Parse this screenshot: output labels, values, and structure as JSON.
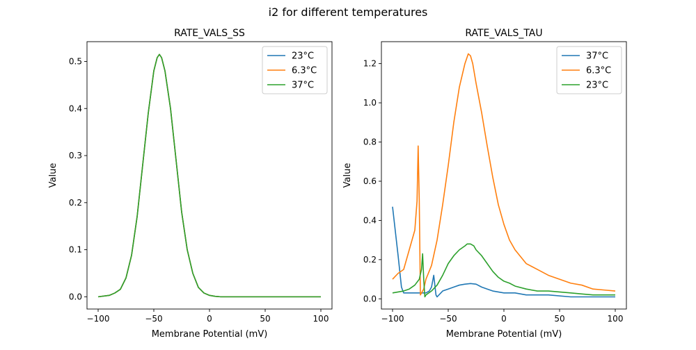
{
  "figure": {
    "suptitle": "i2 for different temperatures"
  },
  "colors": {
    "blue": "#1f77b4",
    "orange": "#ff7f0e",
    "green": "#2ca02c"
  },
  "chart_data": [
    {
      "type": "line",
      "title": "RATE_VALS_SS",
      "xlabel": "Membrane Potential (mV)",
      "ylabel": "Value",
      "xlim": [
        -110,
        110
      ],
      "ylim": [
        -0.026,
        0.542
      ],
      "xticks": [
        -100,
        -50,
        0,
        50,
        100
      ],
      "xtick_labels": [
        "−100",
        "−50",
        "0",
        "50",
        "100"
      ],
      "yticks": [
        0.0,
        0.1,
        0.2,
        0.3,
        0.4,
        0.5
      ],
      "ytick_labels": [
        "0.0",
        "0.1",
        "0.2",
        "0.3",
        "0.4",
        "0.5"
      ],
      "grid": false,
      "legend_position": "upper right",
      "series": [
        {
          "name": "23°C",
          "color": "#1f77b4",
          "x": [
            -100,
            -90,
            -85,
            -80,
            -75,
            -70,
            -65,
            -60,
            -55,
            -50,
            -47,
            -45,
            -43,
            -40,
            -35,
            -30,
            -25,
            -20,
            -15,
            -10,
            -5,
            0,
            5,
            10,
            20,
            40,
            60,
            80,
            100
          ],
          "y": [
            0.0,
            0.003,
            0.008,
            0.016,
            0.04,
            0.088,
            0.17,
            0.28,
            0.39,
            0.48,
            0.508,
            0.515,
            0.508,
            0.48,
            0.4,
            0.29,
            0.18,
            0.1,
            0.05,
            0.02,
            0.008,
            0.003,
            0.001,
            0.0,
            0.0,
            0.0,
            0.0,
            0.0,
            0.0
          ]
        },
        {
          "name": "6.3°C",
          "color": "#ff7f0e",
          "x": [
            -100,
            -90,
            -85,
            -80,
            -75,
            -70,
            -65,
            -60,
            -55,
            -50,
            -47,
            -45,
            -43,
            -40,
            -35,
            -30,
            -25,
            -20,
            -15,
            -10,
            -5,
            0,
            5,
            10,
            20,
            40,
            60,
            80,
            100
          ],
          "y": [
            0.0,
            0.003,
            0.008,
            0.016,
            0.04,
            0.088,
            0.17,
            0.28,
            0.39,
            0.48,
            0.508,
            0.515,
            0.508,
            0.48,
            0.4,
            0.29,
            0.18,
            0.1,
            0.05,
            0.02,
            0.008,
            0.003,
            0.001,
            0.0,
            0.0,
            0.0,
            0.0,
            0.0,
            0.0
          ]
        },
        {
          "name": "37°C",
          "color": "#2ca02c",
          "x": [
            -100,
            -90,
            -85,
            -80,
            -75,
            -70,
            -65,
            -60,
            -55,
            -50,
            -47,
            -45,
            -43,
            -40,
            -35,
            -30,
            -25,
            -20,
            -15,
            -10,
            -5,
            0,
            5,
            10,
            20,
            40,
            60,
            80,
            100
          ],
          "y": [
            0.0,
            0.003,
            0.008,
            0.016,
            0.04,
            0.088,
            0.17,
            0.28,
            0.39,
            0.48,
            0.508,
            0.515,
            0.508,
            0.48,
            0.4,
            0.29,
            0.18,
            0.1,
            0.05,
            0.02,
            0.008,
            0.003,
            0.001,
            0.0,
            0.0,
            0.0,
            0.0,
            0.0,
            0.0
          ]
        }
      ]
    },
    {
      "type": "line",
      "title": "RATE_VALS_TAU",
      "xlabel": "Membrane Potential (mV)",
      "ylabel": "Value",
      "xlim": [
        -110,
        110
      ],
      "ylim": [
        -0.052,
        1.312
      ],
      "xticks": [
        -100,
        -50,
        0,
        50,
        100
      ],
      "xtick_labels": [
        "−100",
        "−50",
        "0",
        "50",
        "100"
      ],
      "yticks": [
        0.0,
        0.2,
        0.4,
        0.6,
        0.8,
        1.0,
        1.2
      ],
      "ytick_labels": [
        "0.0",
        "0.2",
        "0.4",
        "0.6",
        "0.8",
        "1.0",
        "1.2"
      ],
      "grid": false,
      "legend_position": "upper right",
      "series": [
        {
          "name": "37°C",
          "color": "#1f77b4",
          "x": [
            -100,
            -95,
            -92,
            -90,
            -80,
            -75,
            -70,
            -67,
            -65,
            -63,
            -61,
            -60,
            -55,
            -50,
            -45,
            -40,
            -35,
            -30,
            -25,
            -20,
            -15,
            -10,
            -5,
            0,
            5,
            10,
            20,
            40,
            60,
            80,
            100
          ],
          "y": [
            0.47,
            0.22,
            0.06,
            0.03,
            0.03,
            0.03,
            0.03,
            0.04,
            0.06,
            0.12,
            0.02,
            0.01,
            0.04,
            0.05,
            0.06,
            0.07,
            0.075,
            0.078,
            0.075,
            0.06,
            0.05,
            0.04,
            0.035,
            0.03,
            0.03,
            0.03,
            0.02,
            0.02,
            0.01,
            0.01,
            0.01
          ]
        },
        {
          "name": "6.3°C",
          "color": "#ff7f0e",
          "x": [
            -100,
            -95,
            -90,
            -85,
            -80,
            -78,
            -77,
            -76,
            -75,
            -74,
            -72,
            -70,
            -65,
            -60,
            -55,
            -50,
            -45,
            -40,
            -35,
            -32,
            -30,
            -28,
            -25,
            -20,
            -15,
            -10,
            -5,
            0,
            5,
            10,
            20,
            30,
            40,
            50,
            60,
            70,
            80,
            90,
            100
          ],
          "y": [
            0.1,
            0.13,
            0.15,
            0.25,
            0.35,
            0.5,
            0.78,
            0.5,
            0.02,
            0.03,
            0.05,
            0.1,
            0.17,
            0.3,
            0.48,
            0.68,
            0.9,
            1.08,
            1.2,
            1.25,
            1.24,
            1.2,
            1.1,
            0.95,
            0.78,
            0.62,
            0.48,
            0.38,
            0.3,
            0.25,
            0.18,
            0.15,
            0.12,
            0.1,
            0.08,
            0.07,
            0.05,
            0.045,
            0.04
          ]
        },
        {
          "name": "23°C",
          "color": "#2ca02c",
          "x": [
            -100,
            -95,
            -90,
            -85,
            -80,
            -76,
            -74,
            -73,
            -72,
            -71,
            -70,
            -65,
            -60,
            -55,
            -50,
            -45,
            -40,
            -35,
            -33,
            -30,
            -27,
            -25,
            -20,
            -15,
            -10,
            -5,
            0,
            5,
            10,
            20,
            30,
            40,
            50,
            60,
            70,
            80,
            90,
            100
          ],
          "y": [
            0.03,
            0.035,
            0.04,
            0.05,
            0.07,
            0.1,
            0.15,
            0.23,
            0.1,
            0.01,
            0.02,
            0.04,
            0.07,
            0.12,
            0.18,
            0.22,
            0.25,
            0.27,
            0.28,
            0.28,
            0.27,
            0.25,
            0.22,
            0.18,
            0.14,
            0.11,
            0.09,
            0.08,
            0.065,
            0.05,
            0.04,
            0.04,
            0.035,
            0.03,
            0.025,
            0.02,
            0.02,
            0.02
          ]
        }
      ]
    }
  ]
}
